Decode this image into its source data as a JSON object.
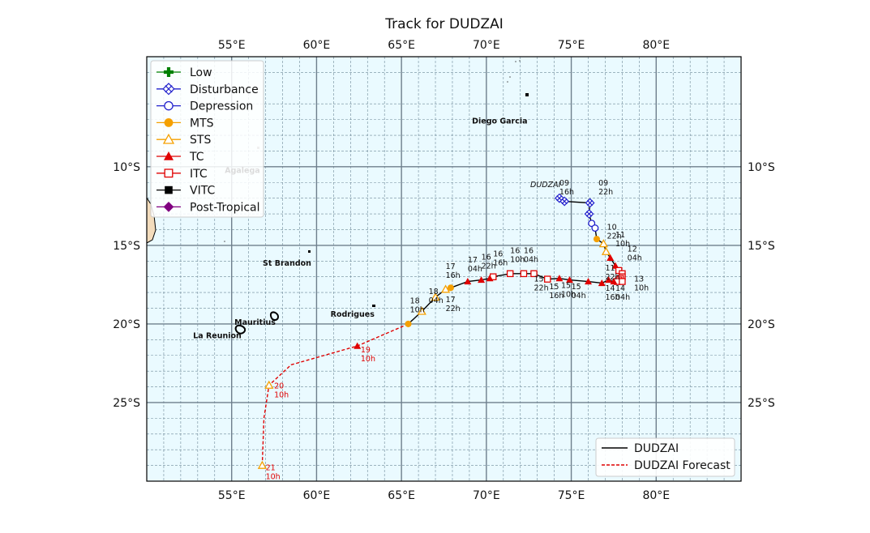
{
  "title": "Track for DUDZAI",
  "lon_ticks": [
    "55°E",
    "60°E",
    "65°E",
    "70°E",
    "75°E",
    "80°E"
  ],
  "lat_ticks": [
    "10°S",
    "15°S",
    "20°S",
    "25°S"
  ],
  "legend_left": [
    "Low",
    "Disturbance",
    "Depression",
    "MTS",
    "STS",
    "TC",
    "ITC",
    "VITC",
    "Post-Tropical"
  ],
  "legend_right": [
    "DUDZAI",
    "DUDZAI Forecast"
  ],
  "storm_name": "DUDZAI",
  "places": [
    {
      "name": "Diego Garcia",
      "lon": 72.4,
      "lat": -7.3
    },
    {
      "name": "Agalega",
      "lon": 56.6,
      "lat": -10.4
    },
    {
      "name": "St Brandon",
      "lon": 59.6,
      "lat": -16.5
    },
    {
      "name": "Rodrigues",
      "lon": 63.4,
      "lat": -19.7
    },
    {
      "name": "Mauritius",
      "lon": 57.55,
      "lat": -20.25
    },
    {
      "name": "La Reunion",
      "lon": 55.5,
      "lat": -21.1
    }
  ],
  "colors": {
    "observed": "#000000",
    "forecast": "#e00000",
    "low": "#008000",
    "disturbance": "#2020cc",
    "depression": "#2020cc",
    "mts": "#f5a000",
    "sts": "#f5a000",
    "tc": "#e00000",
    "itc": "#e00000",
    "vitc": "#000000",
    "post_tropical": "#800080"
  },
  "map_extent": {
    "lon": [
      50,
      85
    ],
    "lat": [
      -30,
      -3
    ]
  },
  "track_observed": [
    {
      "lon": 74.3,
      "lat": -12.0,
      "cat": "disturbance"
    },
    {
      "lon": 74.6,
      "lat": -12.2,
      "cat": "disturbance"
    },
    {
      "lon": 76.1,
      "lat": -12.3,
      "cat": "disturbance"
    },
    {
      "lon": 76.05,
      "lat": -13.0,
      "cat": "disturbance"
    },
    {
      "lon": 76.2,
      "lat": -13.6,
      "cat": "depression"
    },
    {
      "lon": 76.4,
      "lat": -13.9,
      "cat": "depression"
    },
    {
      "lon": 76.5,
      "lat": -14.6,
      "cat": "mts"
    },
    {
      "lon": 76.9,
      "lat": -14.9,
      "cat": "sts"
    },
    {
      "lon": 77.05,
      "lat": -15.4,
      "cat": "sts"
    },
    {
      "lon": 77.3,
      "lat": -15.8,
      "cat": "tc"
    },
    {
      "lon": 77.6,
      "lat": -16.3,
      "cat": "tc"
    },
    {
      "lon": 77.8,
      "lat": -16.6,
      "cat": "itc"
    },
    {
      "lon": 78.0,
      "lat": -16.8,
      "cat": "itc"
    },
    {
      "lon": 78.0,
      "lat": -17.0,
      "cat": "itc"
    },
    {
      "lon": 77.9,
      "lat": -17.1,
      "cat": "itc"
    },
    {
      "lon": 77.8,
      "lat": -17.2,
      "cat": "itc"
    },
    {
      "lon": 77.7,
      "lat": -17.3,
      "cat": "itc"
    },
    {
      "lon": 78.0,
      "lat": -17.3,
      "cat": "itc"
    },
    {
      "lon": 77.5,
      "lat": -17.3,
      "cat": "tc"
    },
    {
      "lon": 77.2,
      "lat": -17.2,
      "cat": "tc"
    },
    {
      "lon": 76.8,
      "lat": -17.4,
      "cat": "tc"
    },
    {
      "lon": 76.0,
      "lat": -17.3,
      "cat": "tc"
    },
    {
      "lon": 74.9,
      "lat": -17.2,
      "cat": "tc"
    },
    {
      "lon": 74.3,
      "lat": -17.1,
      "cat": "tc"
    },
    {
      "lon": 73.6,
      "lat": -17.15,
      "cat": "itc"
    },
    {
      "lon": 72.8,
      "lat": -16.8,
      "cat": "itc"
    },
    {
      "lon": 72.2,
      "lat": -16.8,
      "cat": "itc"
    },
    {
      "lon": 71.4,
      "lat": -16.8,
      "cat": "itc"
    },
    {
      "lon": 70.4,
      "lat": -17.0,
      "cat": "itc"
    },
    {
      "lon": 70.2,
      "lat": -17.1,
      "cat": "tc"
    },
    {
      "lon": 69.7,
      "lat": -17.2,
      "cat": "tc"
    },
    {
      "lon": 68.9,
      "lat": -17.3,
      "cat": "tc"
    },
    {
      "lon": 67.9,
      "lat": -17.7,
      "cat": "mts"
    },
    {
      "lon": 67.6,
      "lat": -17.8,
      "cat": "sts"
    },
    {
      "lon": 67.0,
      "lat": -18.3,
      "cat": "sts"
    },
    {
      "lon": 66.2,
      "lat": -19.2,
      "cat": "sts"
    },
    {
      "lon": 65.4,
      "lat": -20.0,
      "cat": "mts"
    }
  ],
  "track_forecast": [
    {
      "lon": 65.4,
      "lat": -20.0,
      "cat": "none"
    },
    {
      "lon": 62.4,
      "lat": -21.4,
      "cat": "tc"
    },
    {
      "lon": 58.5,
      "lat": -22.6,
      "cat": "none"
    },
    {
      "lon": 57.2,
      "lat": -23.9,
      "cat": "sts"
    },
    {
      "lon": 56.9,
      "lat": -26.0,
      "cat": "none"
    },
    {
      "lon": 56.8,
      "lat": -29.0,
      "cat": "sts"
    }
  ],
  "time_labels": [
    {
      "day": "09",
      "hour": "16h",
      "lon": 74.3,
      "lat": -11.2,
      "color": "black"
    },
    {
      "day": "09",
      "hour": "22h",
      "lon": 76.6,
      "lat": -11.2,
      "color": "black"
    },
    {
      "day": "10",
      "hour": "22h",
      "lon": 77.1,
      "lat": -14.0,
      "color": "black"
    },
    {
      "day": "11",
      "hour": "10h",
      "lon": 77.6,
      "lat": -14.5,
      "color": "black"
    },
    {
      "day": "12",
      "hour": "04h",
      "lon": 78.3,
      "lat": -15.4,
      "color": "black"
    },
    {
      "day": "11",
      "hour": "22h",
      "lon": 77.0,
      "lat": -16.6,
      "color": "black"
    },
    {
      "day": "13",
      "hour": "10h",
      "lon": 78.7,
      "lat": -17.3,
      "color": "black"
    },
    {
      "day": "14",
      "hour": "04h",
      "lon": 77.6,
      "lat": -17.9,
      "color": "black"
    },
    {
      "day": "14",
      "hour": "16h",
      "lon": 77.0,
      "lat": -17.9,
      "color": "black"
    },
    {
      "day": "15",
      "hour": "04h",
      "lon": 75.0,
      "lat": -17.8,
      "color": "black"
    },
    {
      "day": "15",
      "hour": "10h",
      "lon": 74.4,
      "lat": -17.7,
      "color": "black"
    },
    {
      "day": "15",
      "hour": "16h",
      "lon": 73.7,
      "lat": -17.8,
      "color": "black"
    },
    {
      "day": "15",
      "hour": "22h",
      "lon": 72.8,
      "lat": -17.3,
      "color": "black"
    },
    {
      "day": "16",
      "hour": "10h",
      "lon": 71.4,
      "lat": -15.5,
      "color": "black"
    },
    {
      "day": "16",
      "hour": "04h",
      "lon": 72.2,
      "lat": -15.5,
      "color": "black"
    },
    {
      "day": "16",
      "hour": "16h",
      "lon": 70.4,
      "lat": -15.7,
      "color": "black"
    },
    {
      "day": "16",
      "hour": "22h",
      "lon": 69.7,
      "lat": -15.9,
      "color": "black"
    },
    {
      "day": "17",
      "hour": "04h",
      "lon": 68.9,
      "lat": -16.1,
      "color": "black"
    },
    {
      "day": "17",
      "hour": "16h",
      "lon": 67.6,
      "lat": -16.5,
      "color": "black"
    },
    {
      "day": "17",
      "hour": "22h",
      "lon": 67.6,
      "lat": -18.6,
      "color": "black"
    },
    {
      "day": "18",
      "hour": "04h",
      "lon": 66.6,
      "lat": -18.1,
      "color": "black"
    },
    {
      "day": "18",
      "hour": "10h",
      "lon": 65.5,
      "lat": -18.7,
      "color": "black"
    },
    {
      "day": "19",
      "hour": "10h",
      "lon": 62.6,
      "lat": -21.8,
      "color": "red"
    },
    {
      "day": "20",
      "hour": "10h",
      "lon": 57.5,
      "lat": -24.1,
      "color": "red"
    },
    {
      "day": "21",
      "hour": "10h",
      "lon": 57.0,
      "lat": -29.3,
      "color": "red"
    }
  ]
}
